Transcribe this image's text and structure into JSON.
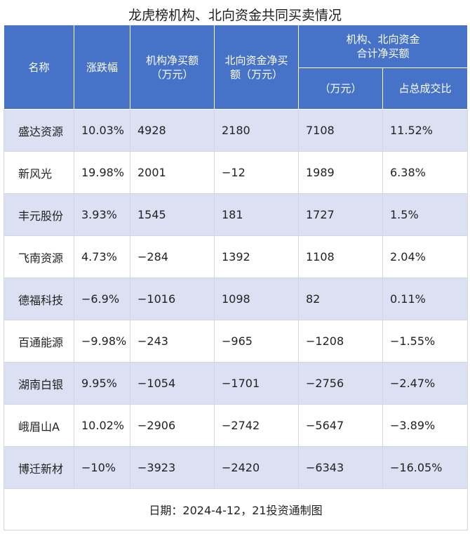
{
  "title": "龙虎榜机构、北向资金共同买卖情况",
  "columns": {
    "name": "名称",
    "change": "涨跌幅",
    "inst_net": [
      "机构净买额",
      "（万元）"
    ],
    "north_net": [
      "北向资金净买",
      "额（万元）"
    ],
    "combined_group": [
      "机构、北向资金",
      "合计净买额"
    ],
    "combined_amount": "（万元）",
    "share": "占总成交比"
  },
  "rows": [
    {
      "name": "盛达资源",
      "change": "10.03%",
      "inst": "4928",
      "north": "2180",
      "combined": "7108",
      "share": "11.52%"
    },
    {
      "name": "新风光",
      "change": "19.98%",
      "inst": "2001",
      "north": "−12",
      "combined": "1989",
      "share": "6.38%"
    },
    {
      "name": "丰元股份",
      "change": "3.93%",
      "inst": "1545",
      "north": "181",
      "combined": "1727",
      "share": "1.5%"
    },
    {
      "name": "飞南资源",
      "change": "4.73%",
      "inst": "−284",
      "north": "1392",
      "combined": "1108",
      "share": "2.04%"
    },
    {
      "name": "德福科技",
      "change": "−6.9%",
      "inst": "−1016",
      "north": "1098",
      "combined": "82",
      "share": "0.11%"
    },
    {
      "name": "百通能源",
      "change": "−9.98%",
      "inst": "−243",
      "north": "−965",
      "combined": "−1208",
      "share": "−1.55%"
    },
    {
      "name": "湖南白银",
      "change": "9.95%",
      "inst": "−1054",
      "north": "−1701",
      "combined": "−2756",
      "share": "−2.47%"
    },
    {
      "name": "峨眉山A",
      "change": "10.02%",
      "inst": "−2906",
      "north": "−2742",
      "combined": "−5647",
      "share": "−3.89%"
    },
    {
      "name": "博迁新材",
      "change": "−10%",
      "inst": "−3923",
      "north": "−2420",
      "combined": "−6343",
      "share": "−16.05%"
    }
  ],
  "footer": "日期：2024-4-12，21投资通制图",
  "colors": {
    "header_bg": "#4673c8",
    "stripe_bg": "#dbe0f2"
  }
}
